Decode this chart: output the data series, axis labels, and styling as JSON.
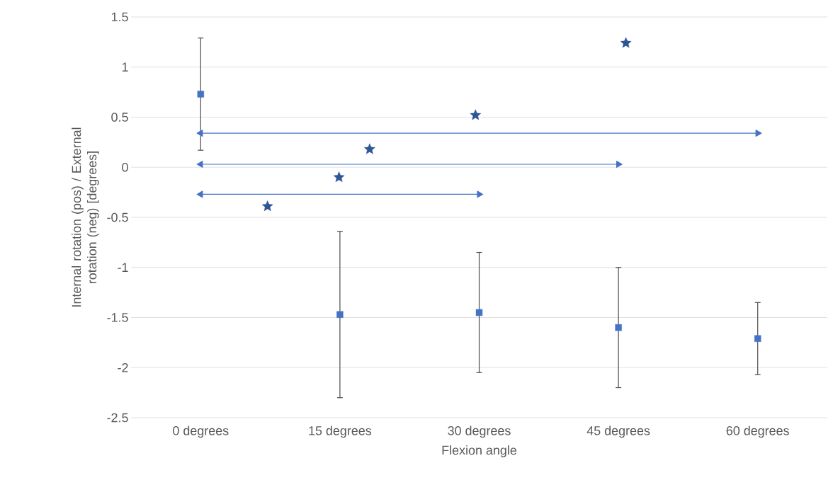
{
  "chart_data": {
    "type": "scatter",
    "xlabel": "Flexion angle",
    "ylabel": "Internal rotation (pos) / External rotation (neg) [degrees]",
    "x": [
      0,
      15,
      30,
      45,
      60
    ],
    "series": [
      {
        "color": "#4472c4",
        "marker": "square",
        "values": [
          0.73,
          -1.47,
          -1.45,
          -1.6,
          -1.71
        ],
        "errors": [
          0.56,
          0.83,
          0.6,
          0.6,
          0.36
        ]
      },
      {
        "color": "#2f5597",
        "marker": "star",
        "x": [
          7.2,
          14.9,
          18.2,
          29.6,
          45.8
        ],
        "values": [
          -0.39,
          -0.1,
          0.18,
          0.52,
          1.24
        ]
      },
      {
        "type": "line",
        "color": "#4472c4",
        "marker": "triangle",
        "x": [
          0,
          30
        ],
        "values": [
          -0.27,
          -0.27
        ]
      },
      {
        "type": "line",
        "color": "#4472c4",
        "marker": "triangle",
        "x": [
          0,
          45
        ],
        "values": [
          0.03,
          0.03
        ]
      },
      {
        "type": "line",
        "color": "#4472c4",
        "marker": "triangle",
        "x": [
          0,
          60
        ],
        "values": [
          0.34,
          0.34
        ]
      }
    ],
    "xlim": [
      -7.5,
      67.5
    ],
    "xticks": [
      {
        "value": 0,
        "label": "0 degrees"
      },
      {
        "value": 15,
        "label": "15 degrees"
      },
      {
        "value": 30,
        "label": "30 degrees"
      },
      {
        "value": 45,
        "label": "45 degrees"
      },
      {
        "value": 60,
        "label": "60 degrees"
      }
    ],
    "ylim": [
      -2.5,
      1.5
    ],
    "yticks": [
      -2.5,
      -2,
      -1.5,
      -1,
      -0.5,
      0,
      0.5,
      1,
      1.5
    ],
    "grid": "y"
  }
}
